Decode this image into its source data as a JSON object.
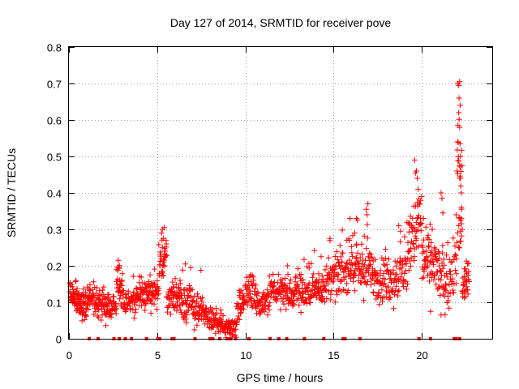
{
  "chart_data": {
    "type": "scatter",
    "title": "Day 127 of 2014, SRMTID for receiver pove",
    "xlabel": "GPS time / hours",
    "ylabel": "SRMTID / TECUs",
    "xlim": [
      0,
      24
    ],
    "ylim": [
      0,
      0.8
    ],
    "xticks": [
      "0",
      "5",
      "10",
      "15",
      "20"
    ],
    "yticks": [
      "0",
      "0.1",
      "0.2",
      "0.3",
      "0.4",
      "0.5",
      "0.6",
      "0.7",
      "0.8"
    ],
    "grid": true,
    "marker": "plus",
    "series_color": "#ff0000",
    "zero_flags_x": [
      1.15,
      1.65,
      2.55,
      2.85,
      3.2,
      3.55,
      4.4,
      5.05,
      5.15,
      5.85,
      5.95,
      7.15,
      8.0,
      8.15,
      8.55,
      9.0,
      9.15,
      9.45,
      10.2,
      11.4,
      11.9,
      12.35,
      13.35,
      14.45,
      15.55,
      15.65,
      16.5,
      19.85,
      20.5,
      21.85,
      21.95,
      22.15
    ],
    "series": [
      {
        "name": "SRMTID",
        "segments": [
          {
            "x0": 0.05,
            "x1": 0.6,
            "base": [
              0.125,
              0.1
            ],
            "spread": 0.015,
            "density": 55
          },
          {
            "x0": 0.6,
            "x1": 1.1,
            "base": [
              0.1,
              0.09
            ],
            "spread": 0.02,
            "density": 45
          },
          {
            "x0": 1.1,
            "x1": 1.6,
            "base": [
              0.12,
              0.11
            ],
            "spread": 0.018,
            "density": 35
          },
          {
            "x0": 1.6,
            "x1": 2.3,
            "base": [
              0.1,
              0.075
            ],
            "spread": 0.018,
            "density": 55
          },
          {
            "x0": 2.3,
            "x1": 2.7,
            "base": [
              0.095,
              0.085
            ],
            "spread": 0.015,
            "density": 25
          },
          {
            "x0": 2.7,
            "x1": 3.1,
            "base": [
              0.155,
              0.12
            ],
            "spread": 0.02,
            "density": 35
          },
          {
            "x0": 3.1,
            "x1": 3.6,
            "base": [
              0.105,
              0.1
            ],
            "spread": 0.018,
            "density": 30
          },
          {
            "x0": 3.6,
            "x1": 4.3,
            "base": [
              0.11,
              0.12
            ],
            "spread": 0.022,
            "density": 50
          },
          {
            "x0": 4.3,
            "x1": 5.1,
            "base": [
              0.115,
              0.125
            ],
            "spread": 0.025,
            "density": 55
          },
          {
            "x0": 5.1,
            "x1": 5.55,
            "base": [
              0.2,
              0.24
            ],
            "spread": 0.03,
            "density": 35
          },
          {
            "x0": 5.55,
            "x1": 6.0,
            "base": [
              0.11,
              0.12
            ],
            "spread": 0.02,
            "density": 30
          },
          {
            "x0": 6.0,
            "x1": 6.8,
            "base": [
              0.12,
              0.1
            ],
            "spread": 0.03,
            "density": 60
          },
          {
            "x0": 6.8,
            "x1": 7.6,
            "base": [
              0.1,
              0.07
            ],
            "spread": 0.025,
            "density": 55
          },
          {
            "x0": 7.6,
            "x1": 8.2,
            "base": [
              0.065,
              0.05
            ],
            "spread": 0.015,
            "density": 40
          },
          {
            "x0": 8.2,
            "x1": 8.8,
            "base": [
              0.05,
              0.035
            ],
            "spread": 0.012,
            "density": 40
          },
          {
            "x0": 8.8,
            "x1": 9.5,
            "base": [
              0.03,
              0.035
            ],
            "spread": 0.012,
            "density": 45
          },
          {
            "x0": 9.5,
            "x1": 10.0,
            "base": [
              0.06,
              0.12
            ],
            "spread": 0.02,
            "density": 35
          },
          {
            "x0": 10.0,
            "x1": 10.6,
            "base": [
              0.14,
              0.11
            ],
            "spread": 0.02,
            "density": 40
          },
          {
            "x0": 10.6,
            "x1": 11.4,
            "base": [
              0.1,
              0.11
            ],
            "spread": 0.02,
            "density": 50
          },
          {
            "x0": 11.4,
            "x1": 12.3,
            "base": [
              0.13,
              0.14
            ],
            "spread": 0.025,
            "density": 55
          },
          {
            "x0": 12.3,
            "x1": 13.2,
            "base": [
              0.12,
              0.13
            ],
            "spread": 0.025,
            "density": 60
          },
          {
            "x0": 13.2,
            "x1": 14.2,
            "base": [
              0.13,
              0.14
            ],
            "spread": 0.025,
            "density": 65
          },
          {
            "x0": 14.2,
            "x1": 15.2,
            "base": [
              0.14,
              0.17
            ],
            "spread": 0.03,
            "density": 65
          },
          {
            "x0": 15.2,
            "x1": 16.2,
            "base": [
              0.18,
              0.2
            ],
            "spread": 0.03,
            "density": 65
          },
          {
            "x0": 16.2,
            "x1": 17.2,
            "base": [
              0.19,
              0.18
            ],
            "spread": 0.035,
            "density": 65
          },
          {
            "x0": 17.2,
            "x1": 18.2,
            "base": [
              0.17,
              0.16
            ],
            "spread": 0.03,
            "density": 65
          },
          {
            "x0": 18.2,
            "x1": 19.2,
            "base": [
              0.16,
              0.19
            ],
            "spread": 0.035,
            "density": 60
          },
          {
            "x0": 19.2,
            "x1": 20.0,
            "base": [
              0.25,
              0.33
            ],
            "spread": 0.05,
            "density": 55
          },
          {
            "x0": 20.0,
            "x1": 20.7,
            "base": [
              0.22,
              0.2
            ],
            "spread": 0.035,
            "density": 45
          },
          {
            "x0": 20.7,
            "x1": 21.4,
            "base": [
              0.2,
              0.15
            ],
            "spread": 0.04,
            "density": 45
          },
          {
            "x0": 21.4,
            "x1": 22.0,
            "base": [
              0.14,
              0.2
            ],
            "spread": 0.04,
            "density": 35
          },
          {
            "x0": 22.0,
            "x1": 22.3,
            "base": [
              0.45,
              0.3
            ],
            "spread": 0.12,
            "density": 30
          },
          {
            "x0": 22.3,
            "x1": 22.7,
            "base": [
              0.13,
              0.17
            ],
            "spread": 0.02,
            "density": 35
          }
        ],
        "points": [
          [
            2.8,
            0.215
          ],
          [
            5.25,
            0.29
          ],
          [
            5.3,
            0.3
          ],
          [
            5.35,
            0.275
          ],
          [
            5.4,
            0.305
          ],
          [
            6.6,
            0.205
          ],
          [
            6.9,
            0.195
          ],
          [
            12.4,
            0.2
          ],
          [
            14.8,
            0.275
          ],
          [
            15.9,
            0.27
          ],
          [
            16.2,
            0.29
          ],
          [
            16.9,
            0.34
          ],
          [
            16.95,
            0.37
          ],
          [
            16.85,
            0.355
          ],
          [
            18.7,
            0.31
          ],
          [
            18.8,
            0.295
          ],
          [
            19.6,
            0.49
          ],
          [
            19.7,
            0.46
          ],
          [
            19.75,
            0.44
          ],
          [
            19.8,
            0.41
          ],
          [
            19.65,
            0.455
          ],
          [
            20.0,
            0.39
          ],
          [
            20.1,
            0.33
          ],
          [
            20.6,
            0.3
          ],
          [
            21.1,
            0.4
          ],
          [
            21.15,
            0.385
          ],
          [
            21.2,
            0.345
          ],
          [
            22.05,
            0.7
          ],
          [
            22.1,
            0.695
          ],
          [
            22.15,
            0.705
          ],
          [
            22.12,
            0.66
          ],
          [
            22.18,
            0.64
          ],
          [
            22.1,
            0.62
          ],
          [
            22.15,
            0.58
          ],
          [
            22.05,
            0.54
          ],
          [
            22.2,
            0.5
          ],
          [
            22.15,
            0.475
          ],
          [
            22.2,
            0.44
          ],
          [
            22.25,
            0.4
          ],
          [
            22.25,
            0.36
          ],
          [
            21.95,
            0.34
          ],
          [
            22.1,
            0.31
          ],
          [
            22.2,
            0.295
          ],
          [
            22.3,
            0.3
          ],
          [
            20.5,
            0.075
          ],
          [
            21.1,
            0.065
          ],
          [
            16.3,
            0.33
          ],
          [
            15.5,
            0.235
          ],
          [
            14.3,
            0.225
          ],
          [
            10.3,
            0.175
          ],
          [
            6.3,
            0.16
          ],
          [
            4.6,
            0.175
          ]
        ]
      }
    ]
  }
}
